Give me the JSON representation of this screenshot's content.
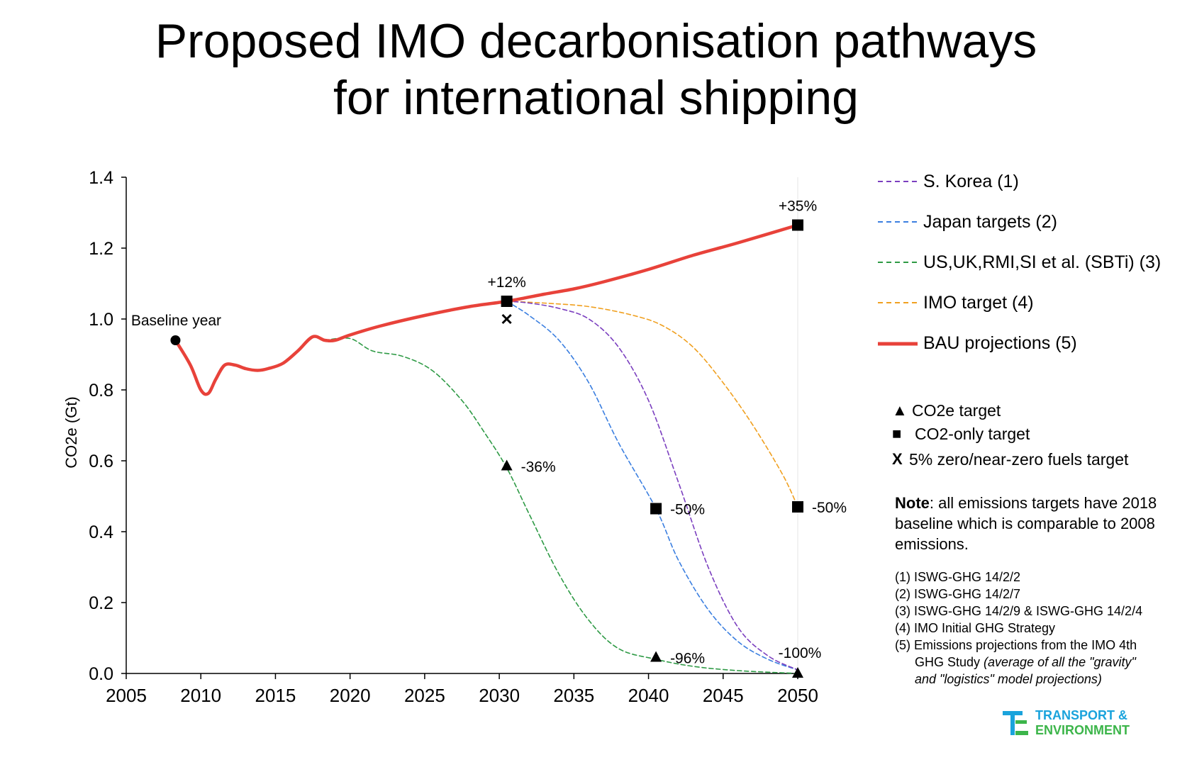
{
  "title_lines": [
    "Proposed IMO decarbonisation pathways",
    "for international shipping"
  ],
  "colors": {
    "bau": "#e8423a",
    "korea": "#7b3fbf",
    "japan": "#3b7fe0",
    "sbti": "#2e9a45",
    "imo": "#f0a020",
    "logo_blue": "#1aa3dc",
    "logo_green": "#3cb54a"
  },
  "legend": {
    "korea": "S. Korea (1)",
    "japan": "Japan targets (2)",
    "sbti": "US,UK,RMI,SI et al. (SBTi) (3)",
    "imo": "IMO target (4)",
    "bau": "BAU projections (5)"
  },
  "marker_legend": {
    "co2e_symbol": "▲",
    "co2e": "CO2e target",
    "co2_symbol": "■",
    "co2": "CO2-only target",
    "zero_symbol": "X",
    "zero": "5% zero/near-zero fuels target"
  },
  "note": {
    "bold": "Note",
    "text": ": all emissions targets have 2018 baseline which is comparable to 2008 emissions."
  },
  "refs": {
    "r1": "(1) ISWG-GHG 14/2/2",
    "r2": "(2) ISWG-GHG 14/2/7",
    "r3": "(3) ISWG-GHG 14/2/9 & ISWG-GHG 14/2/4",
    "r4": "(4) IMO Initial GHG Strategy",
    "r5a": "(5) Emissions projections from the IMO 4th",
    "r5b": "GHG Study ",
    "r5c": "(average of all the \"gravity\" and \"logistics\" model projections)"
  },
  "logo": {
    "line1": "TRANSPORT &",
    "line2": "ENVIRONMENT"
  },
  "chart_data": {
    "type": "line",
    "ylabel": "CO2e (Gt)",
    "xlabel": "",
    "xlim": [
      2005,
      2050
    ],
    "ylim": [
      0,
      1.4
    ],
    "x_ticks": [
      "2005",
      "2010",
      "2015",
      "2020",
      "2025",
      "2030",
      "2035",
      "2040",
      "2045",
      "2050"
    ],
    "y_ticks": [
      "0.0",
      "0.2",
      "0.4",
      "0.6",
      "0.8",
      "1.0",
      "1.2",
      "1.4"
    ],
    "grid": false,
    "legend_position": "right",
    "series": [
      {
        "key": "bau",
        "name": "BAU projections (5)",
        "style": "solid",
        "x": [
          2008.3,
          2009.3,
          2010.0,
          2010.5,
          2011.0,
          2011.6,
          2012.3,
          2013.0,
          2013.8,
          2014.5,
          2015.5,
          2016.5,
          2017.5,
          2018.3,
          2019,
          2020,
          2022,
          2025,
          2028,
          2030.5,
          2033,
          2035,
          2037,
          2040,
          2043,
          2046,
          2050
        ],
        "y": [
          0.94,
          0.87,
          0.8,
          0.79,
          0.83,
          0.87,
          0.87,
          0.86,
          0.855,
          0.86,
          0.875,
          0.91,
          0.95,
          0.94,
          0.94,
          0.955,
          0.98,
          1.01,
          1.035,
          1.05,
          1.07,
          1.085,
          1.105,
          1.14,
          1.18,
          1.215,
          1.265
        ]
      },
      {
        "key": "korea",
        "name": "S. Korea (1)",
        "style": "dashed",
        "x": [
          2030.5,
          2032,
          2034,
          2036,
          2038,
          2040,
          2042,
          2044,
          2046,
          2048,
          2050
        ],
        "y": [
          1.05,
          1.045,
          1.03,
          1.0,
          0.92,
          0.77,
          0.54,
          0.3,
          0.13,
          0.05,
          0.01
        ]
      },
      {
        "key": "japan",
        "name": "Japan targets (2)",
        "style": "dashed",
        "x": [
          2030.5,
          2032,
          2034,
          2036,
          2038,
          2040.5,
          2042,
          2044,
          2046,
          2048,
          2050
        ],
        "y": [
          1.05,
          1.01,
          0.94,
          0.82,
          0.65,
          0.465,
          0.32,
          0.18,
          0.09,
          0.04,
          0.01
        ]
      },
      {
        "key": "sbti",
        "name": "US,UK,RMI,SI et al. (SBTi) (3)",
        "style": "dashed",
        "x": [
          2018.3,
          2020,
          2021.5,
          2023.5,
          2025.5,
          2027.5,
          2029,
          2030.5,
          2032,
          2034,
          2036,
          2038,
          2040.5,
          2043,
          2046,
          2050
        ],
        "y": [
          0.94,
          0.945,
          0.91,
          0.895,
          0.855,
          0.77,
          0.68,
          0.58,
          0.45,
          0.28,
          0.15,
          0.07,
          0.04,
          0.02,
          0.008,
          0.0
        ]
      },
      {
        "key": "imo",
        "name": "IMO target (4)",
        "style": "dashed",
        "x": [
          2030.5,
          2033,
          2036,
          2039,
          2041,
          2043,
          2045,
          2047,
          2049,
          2050
        ],
        "y": [
          1.05,
          1.045,
          1.035,
          1.01,
          0.98,
          0.92,
          0.82,
          0.7,
          0.56,
          0.47
        ]
      }
    ],
    "markers": [
      {
        "shape": "circle",
        "x": 2008.3,
        "y": 0.94,
        "label": "Baseline year",
        "label_pos": "above"
      },
      {
        "shape": "square",
        "x": 2030.5,
        "y": 1.05,
        "label": "+12%",
        "label_pos": "above"
      },
      {
        "shape": "x",
        "x": 2030.5,
        "y": 1.0,
        "label": "",
        "label_pos": "none"
      },
      {
        "shape": "triangle",
        "x": 2030.5,
        "y": 0.585,
        "label": "-36%",
        "label_pos": "right"
      },
      {
        "shape": "square",
        "x": 2040.5,
        "y": 0.465,
        "label": "-50%",
        "label_pos": "right"
      },
      {
        "shape": "triangle",
        "x": 2040.5,
        "y": 0.045,
        "label": "-96%",
        "label_pos": "right"
      },
      {
        "shape": "square",
        "x": 2050,
        "y": 1.265,
        "label": "+35%",
        "label_pos": "above"
      },
      {
        "shape": "square",
        "x": 2050,
        "y": 0.47,
        "label": "-50%",
        "label_pos": "right"
      },
      {
        "shape": "triangle",
        "x": 2050,
        "y": 0.0,
        "label": "-100%",
        "label_pos": "above"
      }
    ]
  }
}
